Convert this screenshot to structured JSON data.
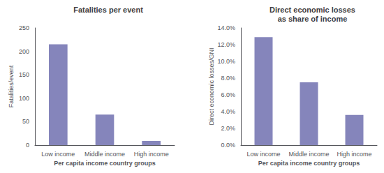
{
  "chart_data": [
    {
      "type": "bar",
      "title": "Fatalities per event",
      "categories": [
        "Low income",
        "Middle income",
        "High income"
      ],
      "values": [
        215,
        65,
        9
      ],
      "color": "#8585bb",
      "xlabel": "Per capita income country groups",
      "ylabel": "Fatalities/event",
      "ylim": [
        0,
        250
      ],
      "yticks": [
        0,
        50,
        100,
        150,
        200,
        250
      ],
      "grid": false
    },
    {
      "type": "bar",
      "title": "Direct economic losses\nas share of income",
      "categories": [
        "Low income",
        "Middle income",
        "High income"
      ],
      "values": [
        0.129,
        0.075,
        0.036
      ],
      "color": "#8585bb",
      "xlabel": "Per capita income country groups",
      "ylabel": "Direct economic losses/GNI",
      "ylim": [
        0,
        0.14
      ],
      "yticks": [
        {
          "value": 0.0,
          "label": "0.0%"
        },
        {
          "value": 0.02,
          "label": "2.0%"
        },
        {
          "value": 0.04,
          "label": "4.0%"
        },
        {
          "value": 0.06,
          "label": "6.0%"
        },
        {
          "value": 0.08,
          "label": "8.0%"
        },
        {
          "value": 0.1,
          "label": "10.0%"
        },
        {
          "value": 0.12,
          "label": "12.0%"
        },
        {
          "value": 0.14,
          "label": "14.0%"
        }
      ],
      "grid": false
    }
  ]
}
